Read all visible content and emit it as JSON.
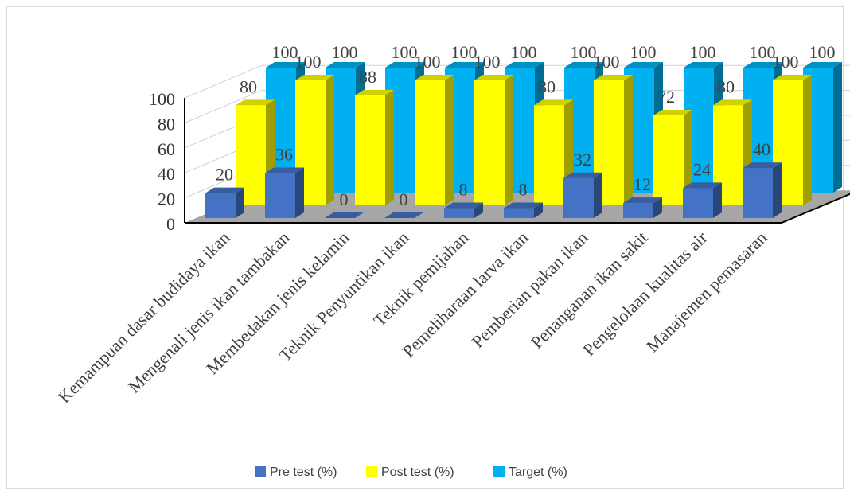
{
  "chart_data": {
    "type": "bar",
    "title": "",
    "xlabel": "",
    "ylabel": "",
    "ylim": [
      0,
      100
    ],
    "yticks": [
      0,
      20,
      40,
      60,
      80,
      100
    ],
    "grid": true,
    "legend_position": "bottom",
    "categories": [
      "Kemampuan dasar budidaya ikan",
      "Mengenali jenis ikan tambakan",
      "Membedakan jenis kelamin",
      "Teknik Penyuntikan ikan",
      "Teknik pemijahan",
      "Pemeliharaan larva ikan",
      "Pemberian pakan ikan",
      "Penanganan ikan sakit",
      "Pengelolaan kualitas air",
      "Manajemen pemasaran"
    ],
    "series": [
      {
        "name": "Pre test (%)",
        "color": "#4472C4",
        "values": [
          20,
          36,
          0,
          0,
          8,
          8,
          32,
          12,
          24,
          40
        ]
      },
      {
        "name": "Post test (%)",
        "color": "#FFFF00",
        "values": [
          80,
          100,
          88,
          100,
          100,
          80,
          100,
          72,
          80,
          100
        ]
      },
      {
        "name": "Target (%)",
        "color": "#00B0F0",
        "values": [
          100,
          100,
          100,
          100,
          100,
          100,
          100,
          100,
          100,
          100
        ]
      }
    ]
  }
}
